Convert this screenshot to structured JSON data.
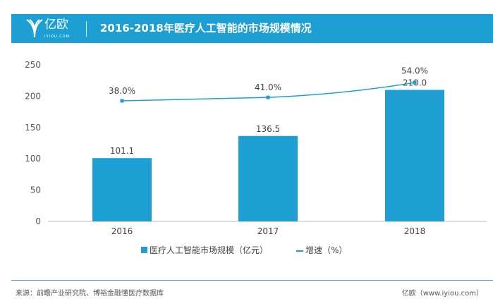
{
  "header": {
    "title": "2016-2018年医疗人工智能的市场规模情况",
    "logo_cn": "亿欧",
    "logo_en": "IYIOU.COM"
  },
  "chart_data": {
    "type": "bar",
    "categories": [
      "2016",
      "2017",
      "2018"
    ],
    "series": [
      {
        "name": "医疗人工智能市场规模（亿元）",
        "type": "bar",
        "values": [
          101.1,
          136.5,
          210.0
        ],
        "labels": [
          "101.1",
          "136.5",
          "210.0"
        ]
      },
      {
        "name": "增速（%）",
        "type": "line",
        "values": [
          38.0,
          41.0,
          54.0
        ],
        "labels": [
          "38.0%",
          "41.0%",
          "54.0%"
        ]
      }
    ],
    "ylim": [
      0,
      250
    ],
    "yticks": [
      "0",
      "50",
      "100",
      "150",
      "200",
      "250"
    ],
    "grid": false,
    "legend": "bottom",
    "color": "#1e9fd4"
  },
  "footer": {
    "source": "来源：前瞻产业研究院、博裕金融懂医疗数据库",
    "brand": "亿欧（www.iyiou.com）"
  }
}
